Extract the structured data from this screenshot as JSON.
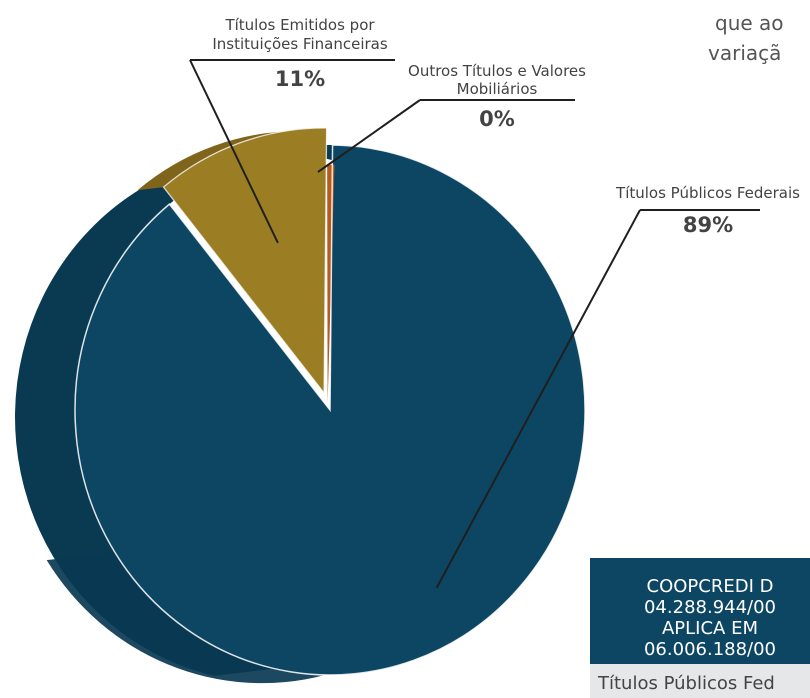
{
  "chart_data": {
    "type": "pie",
    "categories": [
      "Títulos Públicos Federais",
      "Títulos Emitidos por Instituições Financeiras",
      "Outros Títulos e Valores Mobiliários"
    ],
    "values": [
      89,
      11,
      0
    ],
    "value_labels": [
      "89%",
      "11%",
      "0%"
    ],
    "label_lines": [
      [
        "Títulos Públicos Federais"
      ],
      [
        "Títulos Emitidos por",
        "Instituições Financeiras"
      ],
      [
        "Outros Títulos e Valores",
        "Mobiliários"
      ]
    ],
    "colors": {
      "federal_top": "#0d4663",
      "federal_side": "#0a3a52",
      "institutions_top": "#9b7d24",
      "institutions_side": "#7f641b",
      "others_top": "#b65a1f",
      "others_side": "#8f4519",
      "leader": "#1f1f1f",
      "edge": "#ffffff"
    },
    "legend": "none",
    "3d": true
  },
  "top_text": {
    "line1": "que  ao",
    "line2": "variaçã"
  },
  "side_panel": {
    "lines": [
      "COOPCREDI D",
      "04.288.944/00",
      "APLICA EM",
      "06.006.188/00"
    ],
    "row_text": "Títulos Públicos Fed"
  }
}
